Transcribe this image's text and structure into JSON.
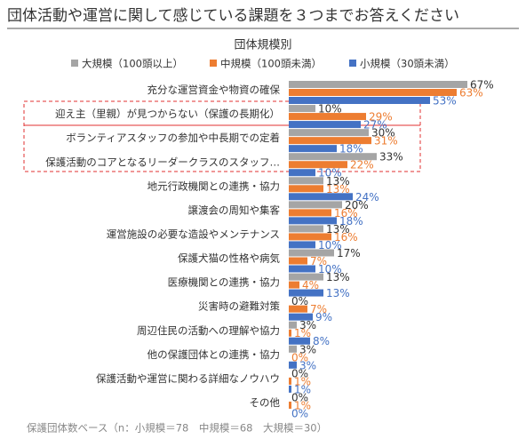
{
  "chart_data": {
    "type": "bar",
    "orientation": "horizontal",
    "title": "団体活動や運営に関して感じている課題を３つまでお答えください",
    "legend_title": "団体規模別",
    "footnote": "保護団体数ベース（n：小規模＝78　中規模＝68　大規模＝30）",
    "categories": [
      "充分な運営資金や物資の確保",
      "迎え主（里親）が見つからない（保護の長期化）",
      "ボランティアスタッフの参加や中長期での定着",
      "保護活動のコアとなるリーダークラスのスタッフ…",
      "地元行政機関との連携・協力",
      "譲渡会の周知や集客",
      "運営施設の必要な造設やメンテナンス",
      "保護犬猫の性格や病気",
      "医療機関との連携・協力",
      "災害時の避難対策",
      "周辺住民の活動への理解や協力",
      "他の保護団体との連携・協力",
      "保護活動や運営に関わる詳細なノウハウ",
      "その他"
    ],
    "xlim": [
      0,
      90
    ],
    "series": [
      {
        "name": "大規模（100頭以上）",
        "color": "#a5a5a5",
        "label_color": "#333333",
        "values": [
          67,
          10,
          30,
          33,
          13,
          20,
          13,
          17,
          13,
          0,
          3,
          3,
          0,
          0
        ],
        "value_labels": [
          "67%",
          "10%",
          "30%",
          "33%",
          "13%",
          "20%",
          "13%",
          "17%",
          "13%",
          "0%",
          "3%",
          "3%",
          "0%",
          "0%"
        ]
      },
      {
        "name": "中規模（100頭未満）",
        "color": "#ed7d31",
        "label_color": "#ed7d31",
        "values": [
          63,
          29,
          31,
          22,
          13,
          16,
          16,
          7,
          4,
          7,
          1,
          0,
          1,
          1
        ],
        "value_labels": [
          "63%",
          "29%",
          "31%",
          "22%",
          "13%",
          "16%",
          "16%",
          "7%",
          "4%",
          "7%",
          "1%",
          "0%",
          "1%",
          "1%"
        ]
      },
      {
        "name": "小規模（30頭未満）",
        "color": "#4472c4",
        "label_color": "#4472c4",
        "values": [
          53,
          27,
          18,
          10,
          24,
          18,
          10,
          10,
          13,
          9,
          8,
          3,
          1,
          0
        ],
        "value_labels": [
          "53%",
          "27%",
          "18%",
          "10%",
          "24%",
          "18%",
          "10%",
          "10%",
          "13%",
          "9%",
          "8%",
          "3%",
          "1%",
          "0%"
        ]
      }
    ]
  }
}
